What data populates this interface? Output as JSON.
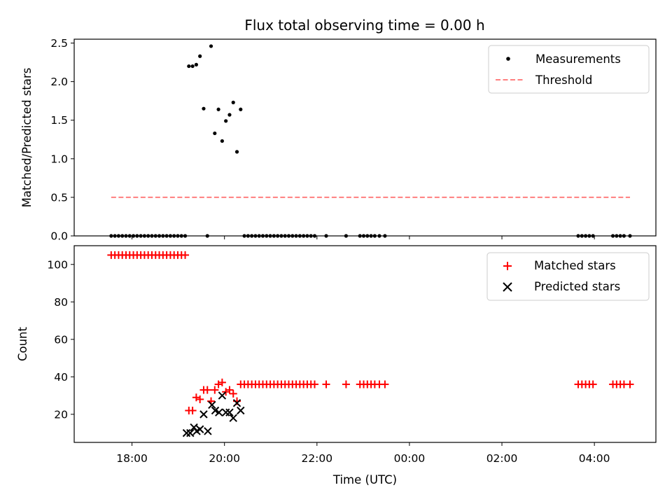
{
  "title": "Flux total observing time = 0.00 h",
  "colors": {
    "measurement": "#000000",
    "threshold": "#ff7f7f",
    "matched": "#ff0000",
    "predicted": "#000000"
  },
  "chart_data": [
    {
      "type": "scatter",
      "ylabel": "Matched/Predicted stars",
      "xlabel": "",
      "xlim": [
        16.75,
        29.33
      ],
      "ylim": [
        0,
        2.55
      ],
      "yticks": [
        "0.0",
        "0.5",
        "1.0",
        "1.5",
        "2.0",
        "2.5"
      ],
      "ytick_values": [
        0,
        0.5,
        1.0,
        1.5,
        2.0,
        2.5
      ],
      "xticks": [
        18,
        20,
        22,
        24,
        26,
        28
      ],
      "grid": false,
      "legend_position": "top-right",
      "legend": [
        "Measurements",
        "Threshold"
      ],
      "series": [
        {
          "name": "Measurements",
          "marker": "dot",
          "x": [
            17.55,
            17.63,
            17.71,
            17.79,
            17.87,
            17.95,
            18.03,
            18.11,
            18.19,
            18.27,
            18.35,
            18.43,
            18.51,
            18.59,
            18.67,
            18.75,
            18.83,
            18.91,
            18.99,
            19.07,
            19.15,
            19.23,
            19.31,
            19.39,
            19.47,
            19.63,
            19.55,
            19.71,
            19.79,
            19.87,
            19.95,
            20.03,
            20.11,
            20.19,
            20.27,
            20.35,
            20.43,
            20.51,
            20.59,
            20.67,
            20.75,
            20.83,
            20.91,
            20.99,
            21.07,
            21.15,
            21.23,
            21.31,
            21.39,
            21.47,
            21.55,
            21.63,
            21.71,
            21.79,
            21.87,
            21.95,
            22.2,
            22.63,
            22.93,
            23.01,
            23.09,
            23.17,
            23.25,
            23.35,
            23.47,
            27.65,
            27.73,
            27.81,
            27.89,
            27.97,
            28.4,
            28.48,
            28.56,
            28.64,
            28.77
          ],
          "y": [
            0,
            0,
            0,
            0,
            0,
            0,
            0,
            0,
            0,
            0,
            0,
            0,
            0,
            0,
            0,
            0,
            0,
            0,
            0,
            0,
            0,
            2.2,
            2.2,
            2.22,
            2.33,
            0,
            1.65,
            2.46,
            1.33,
            1.64,
            1.23,
            1.49,
            1.57,
            1.73,
            1.09,
            1.64,
            0,
            0,
            0,
            0,
            0,
            0,
            0,
            0,
            0,
            0,
            0,
            0,
            0,
            0,
            0,
            0,
            0,
            0,
            0,
            0,
            0,
            0,
            0,
            0,
            0,
            0,
            0,
            0,
            0,
            0,
            0,
            0,
            0,
            0,
            0,
            0,
            0,
            0,
            0
          ]
        },
        {
          "name": "Threshold",
          "marker": "dashed-line",
          "x": [
            17.55,
            28.77
          ],
          "y": [
            0.5,
            0.5
          ]
        }
      ]
    },
    {
      "type": "scatter",
      "ylabel": "Count",
      "xlabel": "Time (UTC)",
      "xlim": [
        16.75,
        29.33
      ],
      "ylim": [
        5,
        110
      ],
      "yticks": [
        "20",
        "40",
        "60",
        "80",
        "100"
      ],
      "ytick_values": [
        20,
        40,
        60,
        80,
        100
      ],
      "xticks": [
        "18:00",
        "20:00",
        "22:00",
        "00:00",
        "02:00",
        "04:00"
      ],
      "xtick_values": [
        18,
        20,
        22,
        24,
        26,
        28
      ],
      "grid": false,
      "legend_position": "top-right",
      "legend": [
        "Matched stars",
        "Predicted stars"
      ],
      "series": [
        {
          "name": "Matched stars",
          "marker": "plus",
          "x": [
            17.55,
            17.63,
            17.71,
            17.79,
            17.87,
            17.95,
            18.03,
            18.11,
            18.19,
            18.27,
            18.35,
            18.43,
            18.51,
            18.59,
            18.67,
            18.75,
            18.83,
            18.91,
            18.99,
            19.07,
            19.15,
            19.23,
            19.31,
            19.39,
            19.47,
            19.55,
            19.63,
            19.71,
            19.79,
            19.87,
            19.95,
            20.03,
            20.11,
            20.19,
            20.27,
            20.35,
            20.43,
            20.51,
            20.59,
            20.67,
            20.75,
            20.83,
            20.91,
            20.99,
            21.07,
            21.15,
            21.23,
            21.31,
            21.39,
            21.47,
            21.55,
            21.63,
            21.71,
            21.79,
            21.87,
            21.95,
            22.2,
            22.63,
            22.93,
            23.01,
            23.09,
            23.17,
            23.25,
            23.35,
            23.47,
            27.65,
            27.73,
            27.81,
            27.89,
            27.97,
            28.4,
            28.48,
            28.56,
            28.64,
            28.77
          ],
          "y": [
            105,
            105,
            105,
            105,
            105,
            105,
            105,
            105,
            105,
            105,
            105,
            105,
            105,
            105,
            105,
            105,
            105,
            105,
            105,
            105,
            105,
            22,
            22,
            29,
            28,
            33,
            33,
            27,
            33,
            36,
            37,
            32,
            33,
            31,
            27,
            36,
            36,
            36,
            36,
            36,
            36,
            36,
            36,
            36,
            36,
            36,
            36,
            36,
            36,
            36,
            36,
            36,
            36,
            36,
            36,
            36,
            36,
            36,
            36,
            36,
            36,
            36,
            36,
            36,
            36,
            36,
            36,
            36,
            36,
            36,
            36,
            36,
            36,
            36,
            36
          ]
        },
        {
          "name": "Predicted stars",
          "marker": "x",
          "x": [
            19.18,
            19.26,
            19.34,
            19.4,
            19.47,
            19.55,
            19.64,
            19.73,
            19.8,
            19.88,
            19.95,
            20.03,
            20.11,
            20.19,
            20.27,
            20.35
          ],
          "y": [
            10,
            10,
            13,
            11,
            12,
            20,
            11,
            25,
            22,
            21,
            30,
            21,
            21,
            18,
            26,
            22
          ]
        }
      ]
    }
  ]
}
